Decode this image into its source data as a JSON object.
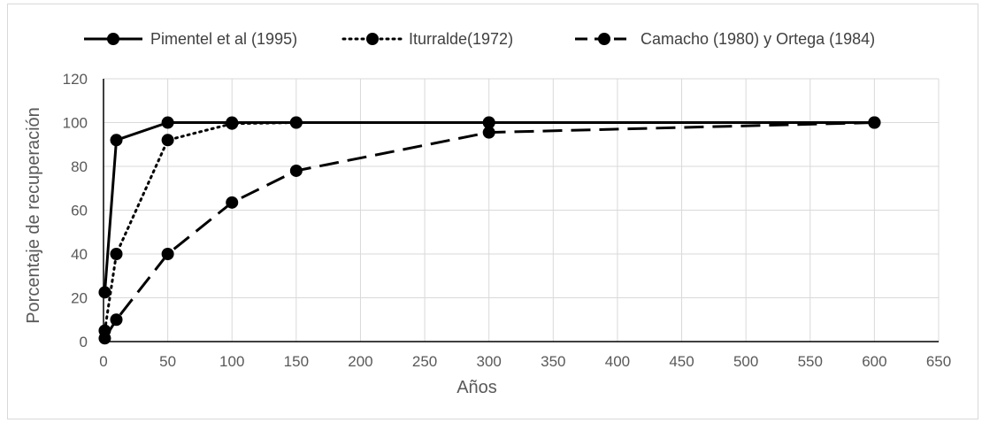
{
  "chart_data": {
    "type": "line",
    "title": "",
    "xlabel": "Años",
    "ylabel": "Porcentaje de recuperación",
    "xlim": [
      0,
      650
    ],
    "ylim": [
      0,
      120
    ],
    "xticks": [
      0,
      50,
      100,
      150,
      200,
      250,
      300,
      350,
      400,
      450,
      500,
      550,
      600,
      650
    ],
    "yticks": [
      0,
      20,
      40,
      60,
      80,
      100,
      120
    ],
    "grid": true,
    "legend_position": "top",
    "series": [
      {
        "name": "Pimentel et al (1995)",
        "style": "solid",
        "color": "#000000",
        "x": [
          1,
          10,
          50,
          100,
          150,
          300,
          600
        ],
        "y": [
          22.5,
          92,
          100,
          100,
          100,
          100,
          100
        ]
      },
      {
        "name": "Iturralde(1972)",
        "style": "dotted",
        "color": "#000000",
        "x": [
          1,
          10,
          50,
          100,
          150,
          300,
          600
        ],
        "y": [
          5,
          40,
          92,
          99.5,
          100,
          100,
          100
        ]
      },
      {
        "name": "Camacho (1980) y Ortega (1984)",
        "style": "dashed",
        "color": "#000000",
        "x": [
          1,
          10,
          50,
          100,
          150,
          300,
          600
        ],
        "y": [
          1.5,
          10,
          40,
          63.5,
          78,
          95.5,
          100
        ]
      }
    ]
  }
}
